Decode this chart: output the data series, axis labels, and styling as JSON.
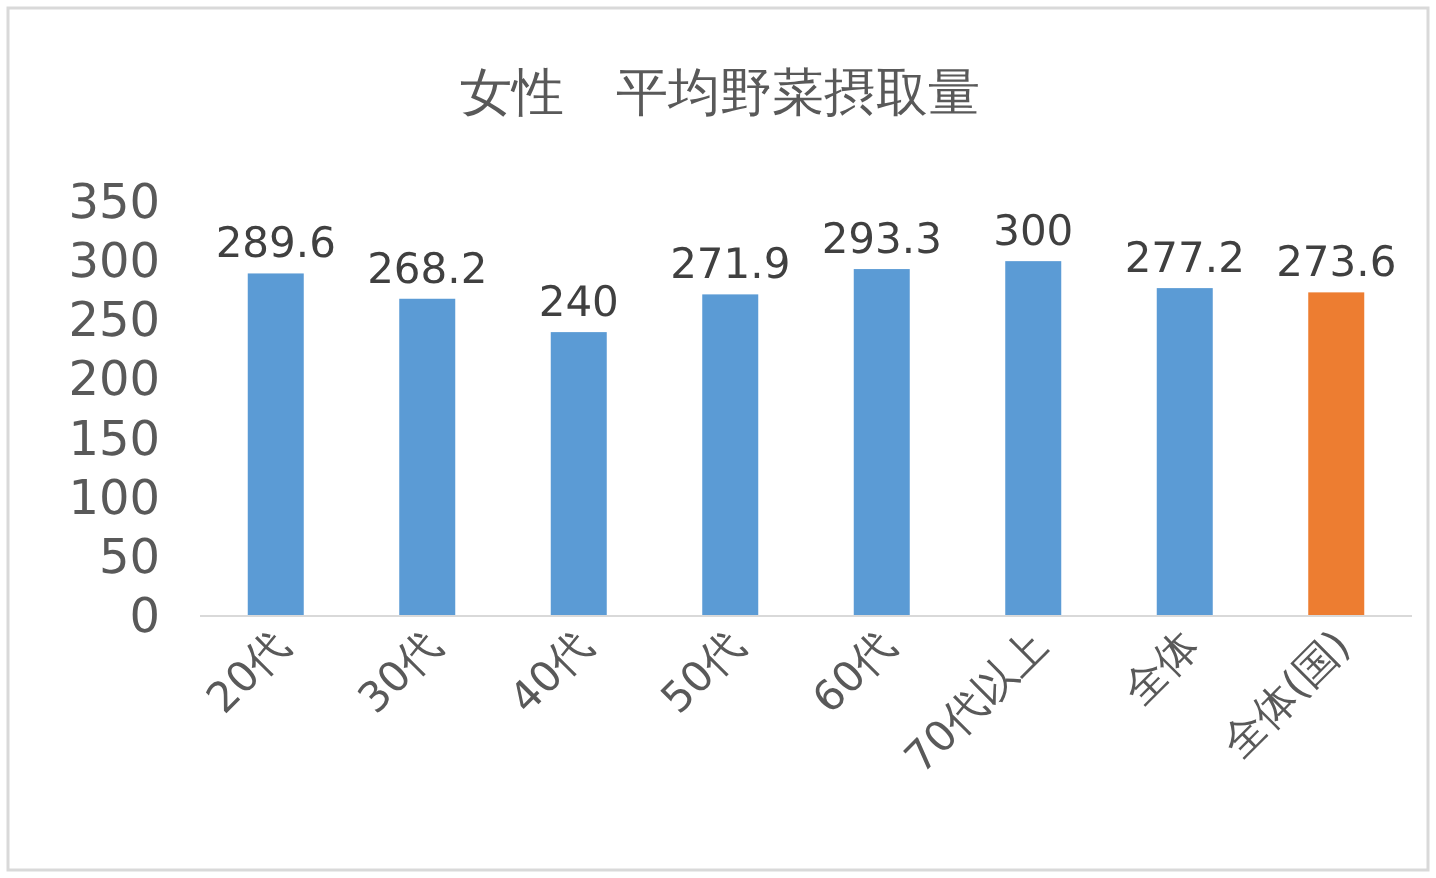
{
  "chart_data": {
    "type": "bar",
    "title": "女性　平均野菜摂取量",
    "categories": [
      "20代",
      "30代",
      "40代",
      "50代",
      "60代",
      "70代以上",
      "全体",
      "全体(国)"
    ],
    "values": [
      289.6,
      268.2,
      240,
      271.9,
      293.3,
      300,
      277.2,
      273.6
    ],
    "colors": [
      "#5b9bd5",
      "#5b9bd5",
      "#5b9bd5",
      "#5b9bd5",
      "#5b9bd5",
      "#5b9bd5",
      "#5b9bd5",
      "#ed7d31"
    ],
    "ylim": [
      0,
      350
    ],
    "yticks": [
      0,
      50,
      100,
      150,
      200,
      250,
      300,
      350
    ],
    "data_labels": true
  }
}
